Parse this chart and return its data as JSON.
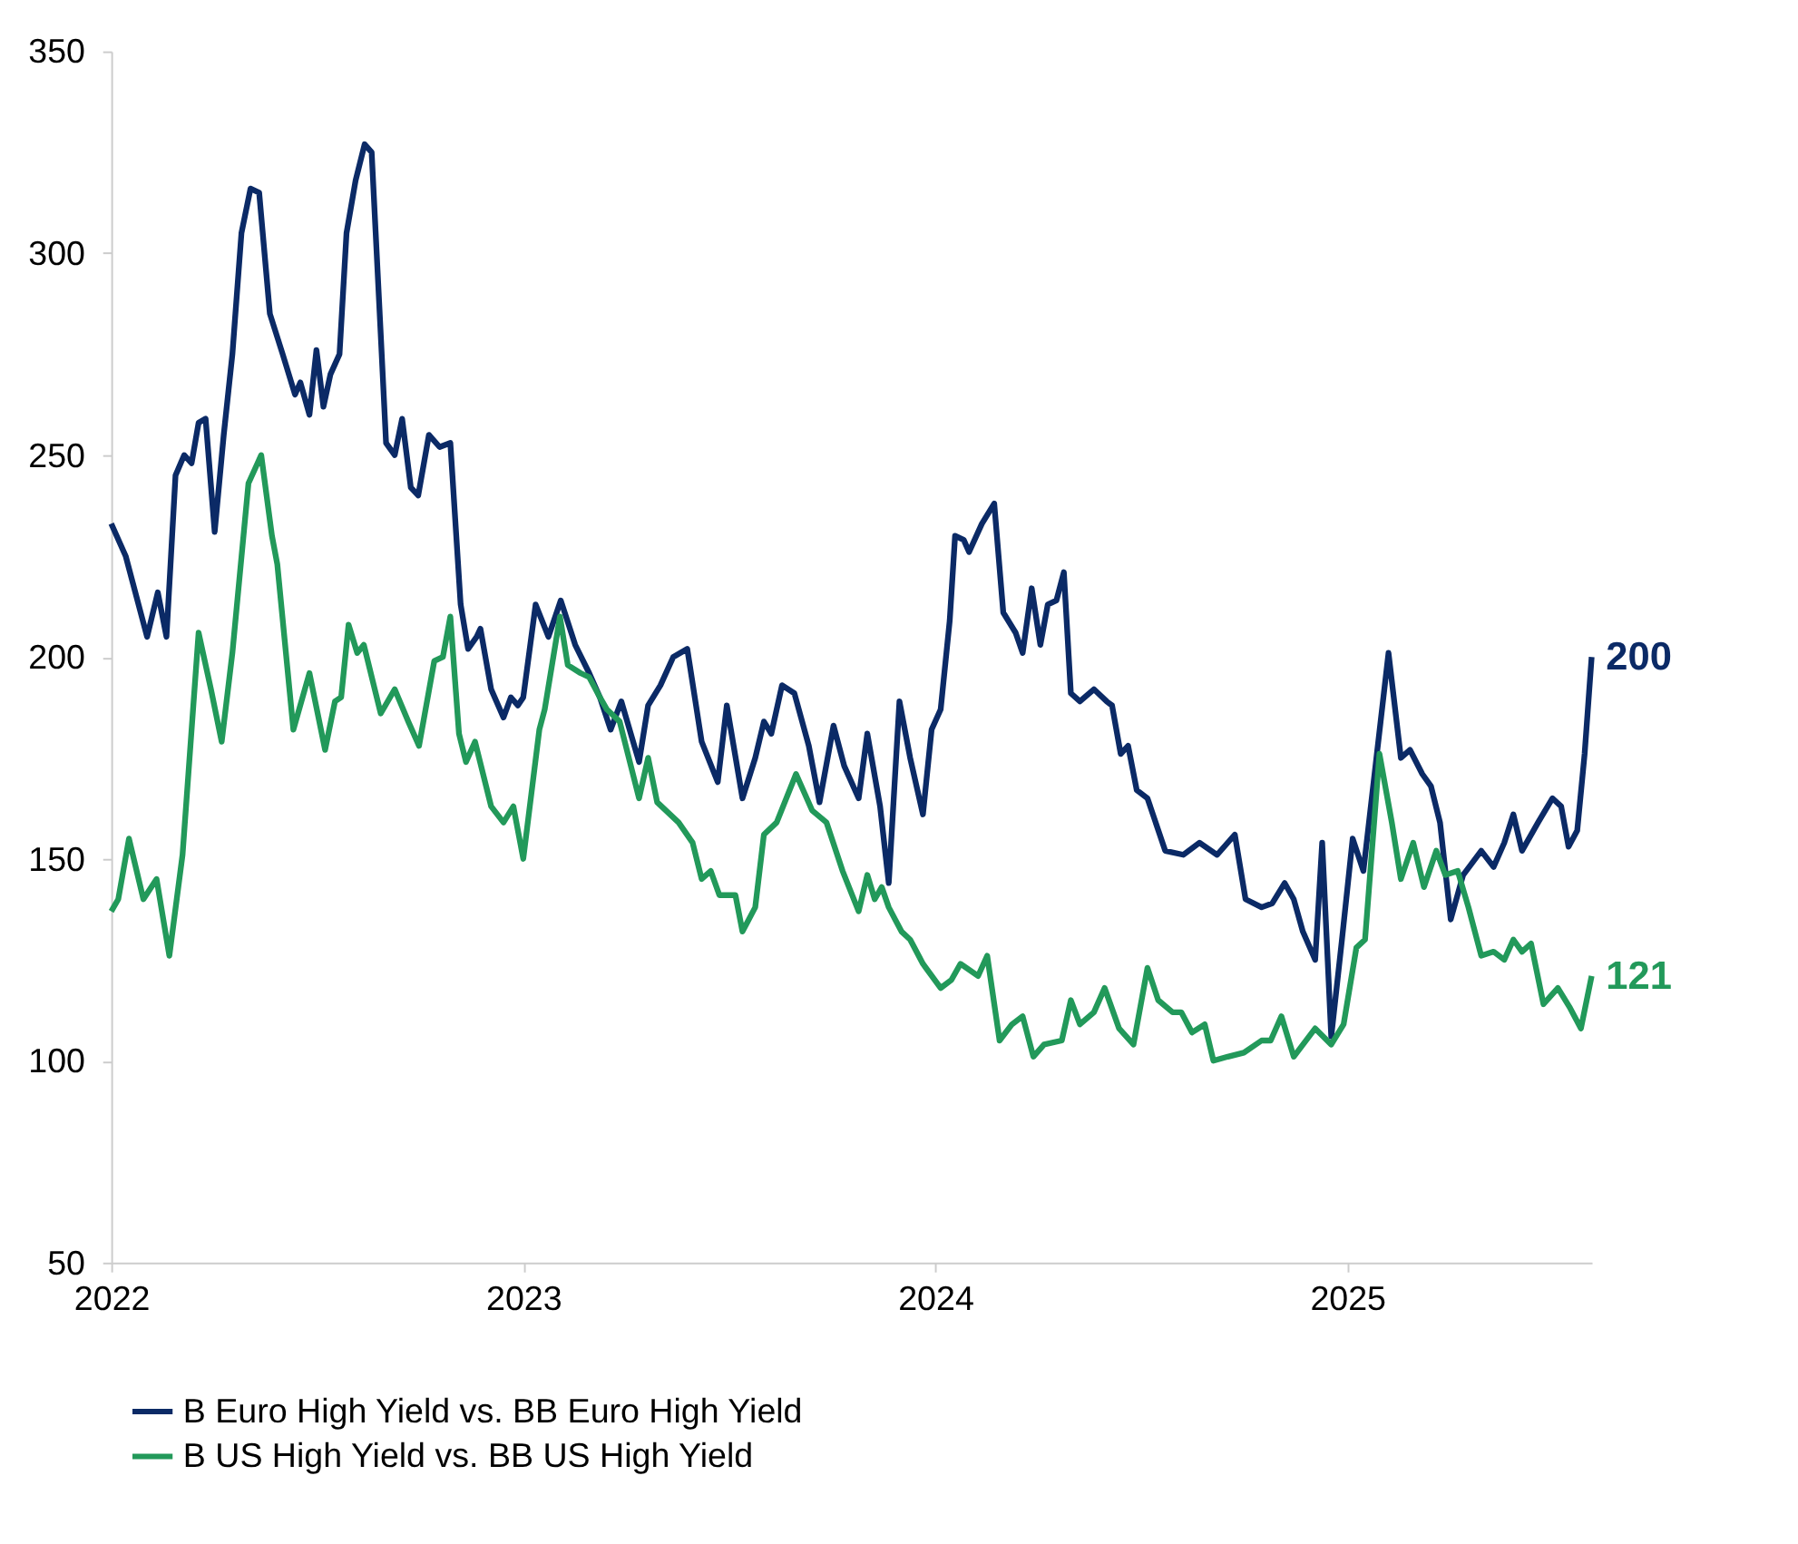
{
  "chart_data": {
    "type": "line",
    "xlim": [
      2022,
      2025.593
    ],
    "xticks": [
      2022,
      2023,
      2024,
      2025
    ],
    "ylim": [
      50,
      350
    ],
    "yticks": [
      50,
      100,
      150,
      200,
      250,
      300,
      350
    ],
    "grid": false,
    "legend": "bottom",
    "marker": "none",
    "line_style": "solid",
    "annotations": [
      {
        "text": "200",
        "x": 2025.593,
        "y": 200
      },
      {
        "text": "121",
        "x": 2025.593,
        "y": 121
      }
    ],
    "series": [
      {
        "name": "B Euro High Yield vs. BB Euro High Yield",
        "color": "#0b2a66",
        "x": [
          2022,
          2022.035,
          2022.087,
          2022.113,
          2022.134,
          2022.156,
          2022.177,
          2022.195,
          2022.212,
          2022.229,
          2022.251,
          2022.273,
          2022.294,
          2022.316,
          2022.338,
          2022.359,
          2022.385,
          2022.416,
          2022.446,
          2022.459,
          2022.481,
          2022.498,
          2022.515,
          2022.532,
          2022.554,
          2022.571,
          2022.593,
          2022.615,
          2022.632,
          2022.654,
          2022.667,
          2022.688,
          2022.706,
          2022.727,
          2022.745,
          2022.771,
          2022.797,
          2022.823,
          2022.848,
          2022.866,
          2022.887,
          2022.896,
          2022.922,
          2022.952,
          2022.97,
          2022.987,
          2023,
          2023.03,
          2023.061,
          2023.091,
          2023.126,
          2023.16,
          2023.186,
          2023.212,
          2023.238,
          2023.281,
          2023.303,
          2023.333,
          2023.364,
          2023.398,
          2023.433,
          2023.472,
          2023.494,
          2023.532,
          2023.563,
          2023.584,
          2023.602,
          2023.628,
          2023.658,
          2023.693,
          2023.719,
          2023.753,
          2023.779,
          2023.814,
          2023.835,
          2023.866,
          2023.887,
          2023.913,
          2023.939,
          2023.97,
          2023.991,
          2024.013,
          2024.035,
          2024.048,
          2024.069,
          2024.082,
          2024.113,
          2024.143,
          2024.165,
          2024.195,
          2024.212,
          2024.234,
          2024.255,
          2024.273,
          2024.294,
          2024.312,
          2024.329,
          2024.351,
          2024.385,
          2024.416,
          2024.429,
          2024.45,
          2024.468,
          2024.489,
          2024.515,
          2024.558,
          2024.602,
          2024.641,
          2024.684,
          2024.727,
          2024.753,
          2024.792,
          2024.818,
          2024.848,
          2024.87,
          2024.892,
          2024.922,
          2024.939,
          2024.961,
          2024.987,
          2025.013,
          2025.039,
          2025.065,
          2025.1,
          2025.13,
          2025.152,
          2025.182,
          2025.203,
          2025.225,
          2025.251,
          2025.281,
          2025.325,
          2025.355,
          2025.381,
          2025.403,
          2025.424,
          2025.463,
          2025.498,
          2025.519,
          2025.537,
          2025.558,
          2025.576,
          2025.593
        ],
        "values": [
          233,
          225,
          205,
          216,
          205,
          245,
          250,
          248,
          258,
          259,
          231,
          255,
          275,
          305,
          316,
          315,
          285,
          275,
          265,
          268,
          260,
          276,
          262,
          270,
          275,
          305,
          318,
          327,
          325,
          280,
          253,
          250,
          259,
          242,
          240,
          255,
          252,
          253,
          213,
          202,
          205,
          207,
          192,
          185,
          190,
          188,
          190,
          213,
          205,
          214,
          203,
          196,
          190,
          182,
          189,
          174,
          188,
          193,
          200,
          202,
          179,
          169,
          188,
          165,
          175,
          184,
          181,
          193,
          191,
          178,
          164,
          183,
          173,
          165,
          181,
          163,
          144,
          189,
          175,
          161,
          182,
          187,
          209,
          230,
          229,
          226,
          233,
          238,
          211,
          206,
          201,
          217,
          203,
          213,
          214,
          221,
          191,
          189,
          192,
          189,
          188,
          176,
          178,
          167,
          165,
          152,
          151,
          154,
          151,
          156,
          140,
          138,
          139,
          144,
          140,
          132,
          125,
          154,
          106,
          130,
          155,
          147,
          170,
          201,
          175,
          177,
          171,
          168,
          159,
          135,
          146,
          152,
          148,
          154,
          161,
          152,
          159,
          165,
          163,
          153,
          157,
          176,
          200
        ]
      },
      {
        "name": "B US High Yield vs. BB US High Yield",
        "color": "#22995a",
        "x": [
          2022,
          2022.017,
          2022.043,
          2022.078,
          2022.11,
          2022.141,
          2022.173,
          2022.212,
          2022.242,
          2022.268,
          2022.294,
          2022.333,
          2022.364,
          2022.39,
          2022.403,
          2022.442,
          2022.481,
          2022.519,
          2022.543,
          2022.558,
          2022.576,
          2022.597,
          2022.613,
          2022.654,
          2022.688,
          2022.721,
          2022.747,
          2022.784,
          2022.805,
          2022.823,
          2022.844,
          2022.861,
          2022.883,
          2022.922,
          2022.952,
          2022.976,
          2023,
          2023.039,
          2023.052,
          2023.089,
          2023.108,
          2023.139,
          2023.16,
          2023.186,
          2023.203,
          2023.234,
          2023.281,
          2023.303,
          2023.325,
          2023.377,
          2023.411,
          2023.433,
          2023.455,
          2023.476,
          2023.515,
          2023.532,
          2023.563,
          2023.584,
          2023.615,
          2023.662,
          2023.701,
          2023.736,
          2023.775,
          2023.814,
          2023.835,
          2023.853,
          2023.87,
          2023.887,
          2023.918,
          2023.939,
          2023.97,
          2024.013,
          2024.039,
          2024.061,
          2024.104,
          2024.126,
          2024.156,
          2024.186,
          2024.212,
          2024.238,
          2024.264,
          2024.307,
          2024.329,
          2024.351,
          2024.385,
          2024.411,
          2024.446,
          2024.481,
          2024.515,
          2024.541,
          2024.576,
          2024.597,
          2024.623,
          2024.654,
          2024.675,
          2024.71,
          2024.749,
          2024.792,
          2024.814,
          2024.84,
          2024.87,
          2024.922,
          2024.961,
          2024.991,
          2025.022,
          2025.043,
          2025.078,
          2025.108,
          2025.13,
          2025.16,
          2025.186,
          2025.216,
          2025.238,
          2025.268,
          2025.294,
          2025.325,
          2025.355,
          2025.381,
          2025.403,
          2025.424,
          2025.446,
          2025.476,
          2025.511,
          2025.541,
          2025.567,
          2025.593
        ],
        "values": [
          137,
          140,
          155,
          140,
          145,
          126,
          151,
          206,
          192,
          179,
          201,
          243,
          250,
          230,
          223,
          182,
          196,
          177,
          189,
          190,
          208,
          201,
          203,
          186,
          192,
          184,
          178,
          199,
          200,
          210,
          181,
          174,
          179,
          163,
          159,
          163,
          150,
          182,
          187,
          210,
          198,
          196,
          195,
          190,
          187,
          184,
          165,
          175,
          164,
          159,
          154,
          145,
          147,
          141,
          141,
          132,
          138,
          156,
          159,
          171,
          162,
          159,
          147,
          137,
          146,
          140,
          143,
          138,
          132,
          130,
          124,
          118,
          120,
          124,
          121,
          126,
          105,
          109,
          111,
          101,
          104,
          105,
          115,
          109,
          112,
          118,
          108,
          104,
          123,
          115,
          112,
          112,
          107,
          109,
          100,
          101,
          102,
          105,
          105,
          111,
          101,
          108,
          104,
          109,
          128,
          130,
          176,
          159,
          145,
          154,
          143,
          152,
          146,
          147,
          138,
          126,
          127,
          125,
          130,
          127,
          129,
          114,
          118,
          113,
          108,
          121
        ]
      }
    ]
  }
}
